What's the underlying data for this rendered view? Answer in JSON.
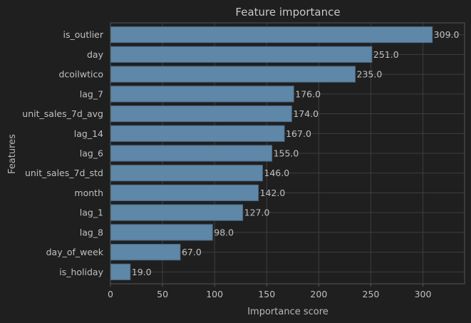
{
  "chart_data": {
    "type": "bar",
    "orientation": "horizontal",
    "title": "Feature importance",
    "xlabel": "Importance score",
    "ylabel": "Features",
    "categories": [
      "is_outlier",
      "day",
      "dcoilwtico",
      "lag_7",
      "unit_sales_7d_avg",
      "lag_14",
      "lag_6",
      "unit_sales_7d_std",
      "month",
      "lag_1",
      "lag_8",
      "day_of_week",
      "is_holiday"
    ],
    "values": [
      309.0,
      251.0,
      235.0,
      176.0,
      174.0,
      167.0,
      155.0,
      146.0,
      142.0,
      127.0,
      98.0,
      67.0,
      19.0
    ],
    "data_labels": [
      "309.0",
      "251.0",
      "235.0",
      "176.0",
      "174.0",
      "167.0",
      "155.0",
      "146.0",
      "142.0",
      "127.0",
      "98.0",
      "67.0",
      "19.0"
    ],
    "xticks": [
      0,
      50,
      100,
      150,
      200,
      250,
      300
    ],
    "xlim": [
      0,
      340
    ],
    "grid": true,
    "colors": {
      "background": "#1f1f1f",
      "bar": "#5f87a8",
      "bar_edge": "#4a6a85",
      "grid": "#3e3e3e",
      "spine": "#555555",
      "text": "#c0c0c0"
    }
  }
}
